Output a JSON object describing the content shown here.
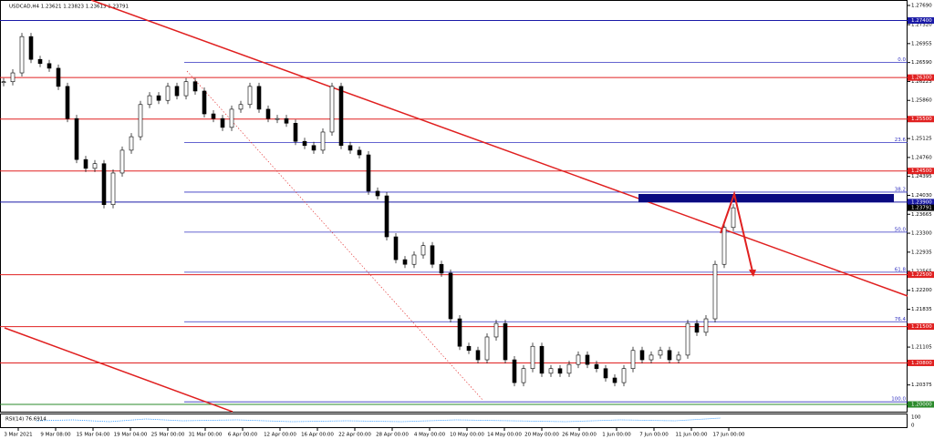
{
  "chart_data": {
    "type": "candlestick",
    "title": "USDCAD,H4  1.23621 1.23823 1.23613 1.23791",
    "ylim": [
      1.1986,
      1.27795
    ],
    "yticks": [
      {
        "value": 1.2769,
        "label": "1.27690"
      },
      {
        "value": 1.2732,
        "label": "1.27320"
      },
      {
        "value": 1.26955,
        "label": "1.26955"
      },
      {
        "value": 1.2659,
        "label": "1.26590"
      },
      {
        "value": 1.26225,
        "label": "1.26225"
      },
      {
        "value": 1.2586,
        "label": "1.25860"
      },
      {
        "value": 1.25125,
        "label": "1.25125"
      },
      {
        "value": 1.2476,
        "label": "1.24760"
      },
      {
        "value": 1.24395,
        "label": "1.24395"
      },
      {
        "value": 1.2403,
        "label": "1.24030"
      },
      {
        "value": 1.23665,
        "label": "1.23665"
      },
      {
        "value": 1.233,
        "label": "1.23300"
      },
      {
        "value": 1.22935,
        "label": "1.22935"
      },
      {
        "value": 1.22565,
        "label": "1.22565"
      },
      {
        "value": 1.222,
        "label": "1.22200"
      },
      {
        "value": 1.21835,
        "label": "1.21835"
      },
      {
        "value": 1.21105,
        "label": "1.21105"
      },
      {
        "value": 1.20375,
        "label": "1.20375"
      }
    ],
    "x_labels": [
      "3 Mar 2021",
      "9 Mar 08:00",
      "15 Mar 04:00",
      "19 Mar 04:00",
      "25 Mar 00:00",
      "31 Mar 00:00",
      "6 Apr 00:00",
      "12 Apr 00:00",
      "16 Apr 00:00",
      "22 Apr 00:00",
      "28 Apr 00:00",
      "4 May 00:00",
      "10 May 00:00",
      "14 May 00:00",
      "20 May 00:00",
      "26 May 00:00",
      "1 Jun 00:00",
      "7 Jun 00:00",
      "11 Jun 00:00",
      "17 Jun 00:00"
    ],
    "values": [
      1.2622,
      1.2639,
      1.2709,
      1.2665,
      1.2657,
      1.2648,
      1.2613,
      1.2551,
      1.2472,
      1.2455,
      1.2464,
      1.2385,
      1.2446,
      1.249,
      1.2516,
      1.2578,
      1.2595,
      1.2586,
      1.2613,
      1.2595,
      1.2622,
      1.2604,
      1.256,
      1.2551,
      1.2534,
      1.2569,
      1.2578,
      1.2613,
      1.2569,
      1.2551,
      1.2551,
      1.2542,
      1.2507,
      1.2499,
      1.249,
      1.2525,
      1.2613,
      1.2499,
      1.249,
      1.2481,
      1.2411,
      1.2402,
      1.2323,
      1.2279,
      1.227,
      1.2288,
      1.2306,
      1.227,
      1.2253,
      1.2165,
      1.2112,
      1.2104,
      1.2086,
      1.213,
      1.2156,
      1.2086,
      1.2042,
      1.2069,
      1.2112,
      1.206,
      1.2069,
      1.206,
      1.2077,
      1.2095,
      1.2077,
      1.2069,
      1.2051,
      1.2042,
      1.2069,
      1.2104,
      1.2086,
      1.2095,
      1.2104,
      1.2086,
      1.2095,
      1.2156,
      1.2139,
      1.2165,
      1.227,
      1.2341,
      1.2379
    ],
    "levels": [
      {
        "value": 1.274,
        "label": "1.27400",
        "color": "#1a1aa6"
      },
      {
        "value": 1.263,
        "label": "1.26300",
        "color": "#e02020"
      },
      {
        "value": 1.255,
        "label": "1.25500",
        "color": "#e02020"
      },
      {
        "value": 1.245,
        "label": "1.24500",
        "color": "#e02020"
      },
      {
        "value": 1.239,
        "label": "1.23900",
        "color": "#1a1aa6"
      },
      {
        "value": 1.225,
        "label": "1.22500",
        "color": "#e02020"
      },
      {
        "value": 1.215,
        "label": "1.21500",
        "color": "#e02020"
      },
      {
        "value": 1.208,
        "label": "1.20800",
        "color": "#e02020"
      },
      {
        "value": 1.2,
        "label": "1.20000",
        "color": "#2a8a2a"
      }
    ],
    "current_price": {
      "value": 1.23791,
      "label": "1.23791"
    },
    "fib_levels": [
      {
        "value": 1.2659,
        "label": "0.0"
      },
      {
        "value": 1.25047,
        "label": "23.6"
      },
      {
        "value": 1.24092,
        "label": "38.2"
      },
      {
        "value": 1.2332,
        "label": "50.0"
      },
      {
        "value": 1.22548,
        "label": "61.8"
      },
      {
        "value": 1.21593,
        "label": "76.4"
      },
      {
        "value": 1.2005,
        "label": "100.0"
      }
    ],
    "rsi_label": "RSI(14) 76.6914",
    "rsi_ticks": [
      100,
      0
    ]
  }
}
